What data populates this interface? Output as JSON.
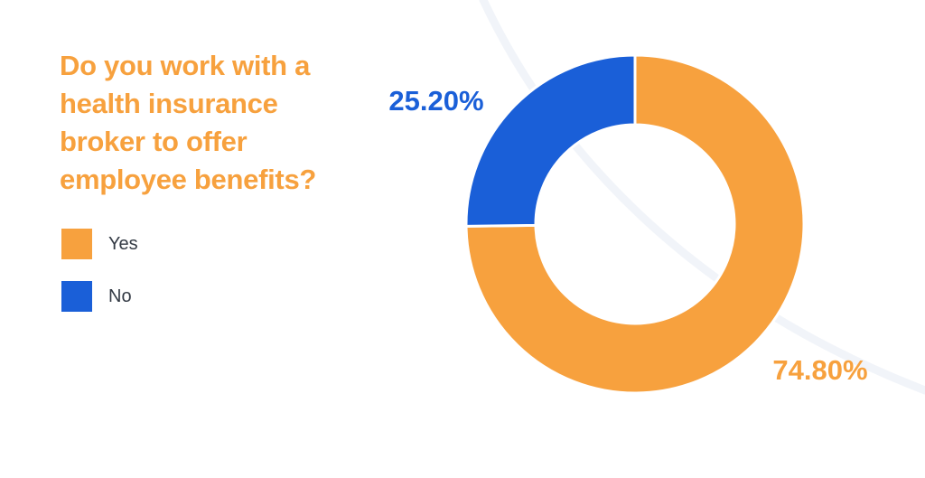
{
  "chart_data": {
    "type": "pie",
    "title": "Do you work with a health insurance broker to offer employee benefits?",
    "categories": [
      "Yes",
      "No"
    ],
    "values": [
      74.8,
      25.2
    ],
    "data_labels": [
      "74.80%",
      "25.20%"
    ],
    "colors": [
      "#f7a13e",
      "#1a5fd8"
    ],
    "donut": true,
    "legend_position": "left"
  }
}
